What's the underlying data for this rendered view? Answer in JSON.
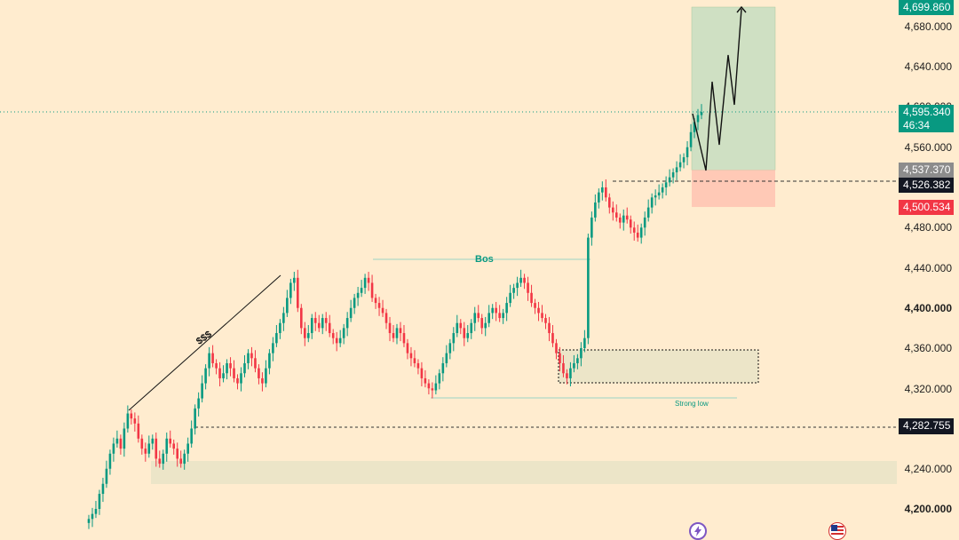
{
  "price_axis": {
    "ticks": [
      "4,680.000",
      "4,640.000",
      "4,600.000",
      "4,560.000",
      "4,480.000",
      "4,440.000",
      "4,400.000",
      "4,360.000",
      "4,320.000",
      "4,240.000",
      "4,200.000"
    ]
  },
  "price_tags": {
    "top": "4,699.860",
    "current_price": "4,595.340",
    "countdown": "46:34",
    "target": "4,537.370",
    "entry": "4,526.382",
    "stop": "4,500.534",
    "level": "4,282.755"
  },
  "annotations": {
    "bos": "Bos",
    "strong_low": "Strong low",
    "liquidity": "$$$"
  },
  "icons": {
    "flash": "flash-icon",
    "us_flag": "us-flag-icon"
  },
  "colors": {
    "background": "#ffeccf",
    "bull": "#089981",
    "bear": "#f23645",
    "profit_zone": "#cfe0c3",
    "loss_zone": "#ffc9b6",
    "demand_zone": "#ece5c8"
  },
  "chart_data": {
    "type": "candlestick",
    "ylim": [
      4180,
      4720
    ],
    "y_ticks": [
      4200,
      4240,
      4280,
      4320,
      4360,
      4400,
      4440,
      4480,
      4520,
      4560,
      4600,
      4640,
      4680
    ],
    "series_close": [
      4190,
      4195,
      4200,
      4215,
      4225,
      4240,
      4255,
      4265,
      4270,
      4260,
      4280,
      4295,
      4290,
      4285,
      4270,
      4260,
      4255,
      4265,
      4270,
      4250,
      4245,
      4255,
      4270,
      4265,
      4260,
      4250,
      4245,
      4255,
      4265,
      4280,
      4300,
      4310,
      4325,
      4340,
      4355,
      4345,
      4340,
      4330,
      4335,
      4345,
      4340,
      4330,
      4325,
      4335,
      4345,
      4355,
      4350,
      4340,
      4330,
      4325,
      4340,
      4355,
      4365,
      4375,
      4385,
      4395,
      4410,
      4425,
      4430,
      4400,
      4380,
      4370,
      4375,
      4390,
      4385,
      4380,
      4390,
      4385,
      4375,
      4370,
      4365,
      4370,
      4380,
      4390,
      4400,
      4410,
      4415,
      4420,
      4430,
      4425,
      4410,
      4405,
      4400,
      4395,
      4385,
      4375,
      4370,
      4380,
      4375,
      4365,
      4355,
      4350,
      4345,
      4340,
      4330,
      4325,
      4320,
      4318,
      4325,
      4335,
      4345,
      4355,
      4365,
      4375,
      4385,
      4380,
      4370,
      4375,
      4385,
      4395,
      4390,
      4380,
      4385,
      4395,
      4400,
      4395,
      4390,
      4395,
      4405,
      4415,
      4420,
      4425,
      4430,
      4425,
      4415,
      4405,
      4400,
      4395,
      4390,
      4385,
      4375,
      4365,
      4355,
      4345,
      4335,
      4330,
      4340,
      4345,
      4350,
      4360,
      4370,
      4470,
      4490,
      4505,
      4515,
      4520,
      4510,
      4500,
      4495,
      4490,
      4485,
      4492,
      4488,
      4480,
      4475,
      4470,
      4480,
      4490,
      4500,
      4510,
      4512,
      4515,
      4520,
      4525,
      4530,
      4535,
      4540,
      4545,
      4550,
      4560,
      4575,
      4585,
      4592,
      4595
    ]
  }
}
